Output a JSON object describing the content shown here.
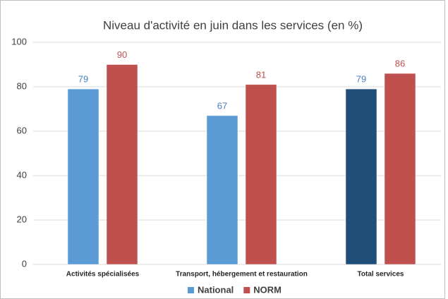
{
  "chart_data": {
    "type": "bar",
    "title": "Niveau d'activité en juin dans les services (en %)",
    "categories": [
      "Activités spécialisées",
      "Transport, hébergement et restauration",
      "Total services"
    ],
    "series": [
      {
        "name": "National",
        "color": "#5b9bd5",
        "colors": [
          "#5b9bd5",
          "#5b9bd5",
          "#1f4e79"
        ],
        "values": [
          79,
          67,
          79
        ]
      },
      {
        "name": "NORM",
        "color": "#c0504d",
        "values": [
          90,
          81,
          86
        ]
      }
    ],
    "ylim": [
      0,
      100
    ],
    "yticks": [
      0,
      20,
      40,
      60,
      80,
      100
    ],
    "grid": true
  }
}
